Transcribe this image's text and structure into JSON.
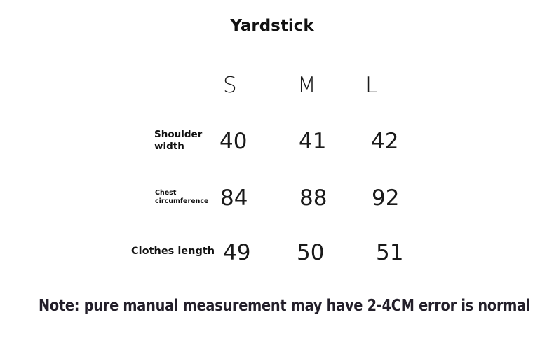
{
  "title": "Yardstick",
  "sizes": [
    "S",
    "M",
    "L"
  ],
  "rows": [
    {
      "label_line1": "Shoulder",
      "label_line2": "width",
      "values": [
        "40",
        "41",
        "42"
      ]
    },
    {
      "label_line1": "Chest",
      "label_line2": "circumference",
      "values": [
        "84",
        "88",
        "92"
      ]
    },
    {
      "label_line1": "Clothes length",
      "values": [
        "49",
        "50",
        "51"
      ]
    }
  ],
  "note": "Note: pure manual measurement may have 2-4CM error is normal"
}
